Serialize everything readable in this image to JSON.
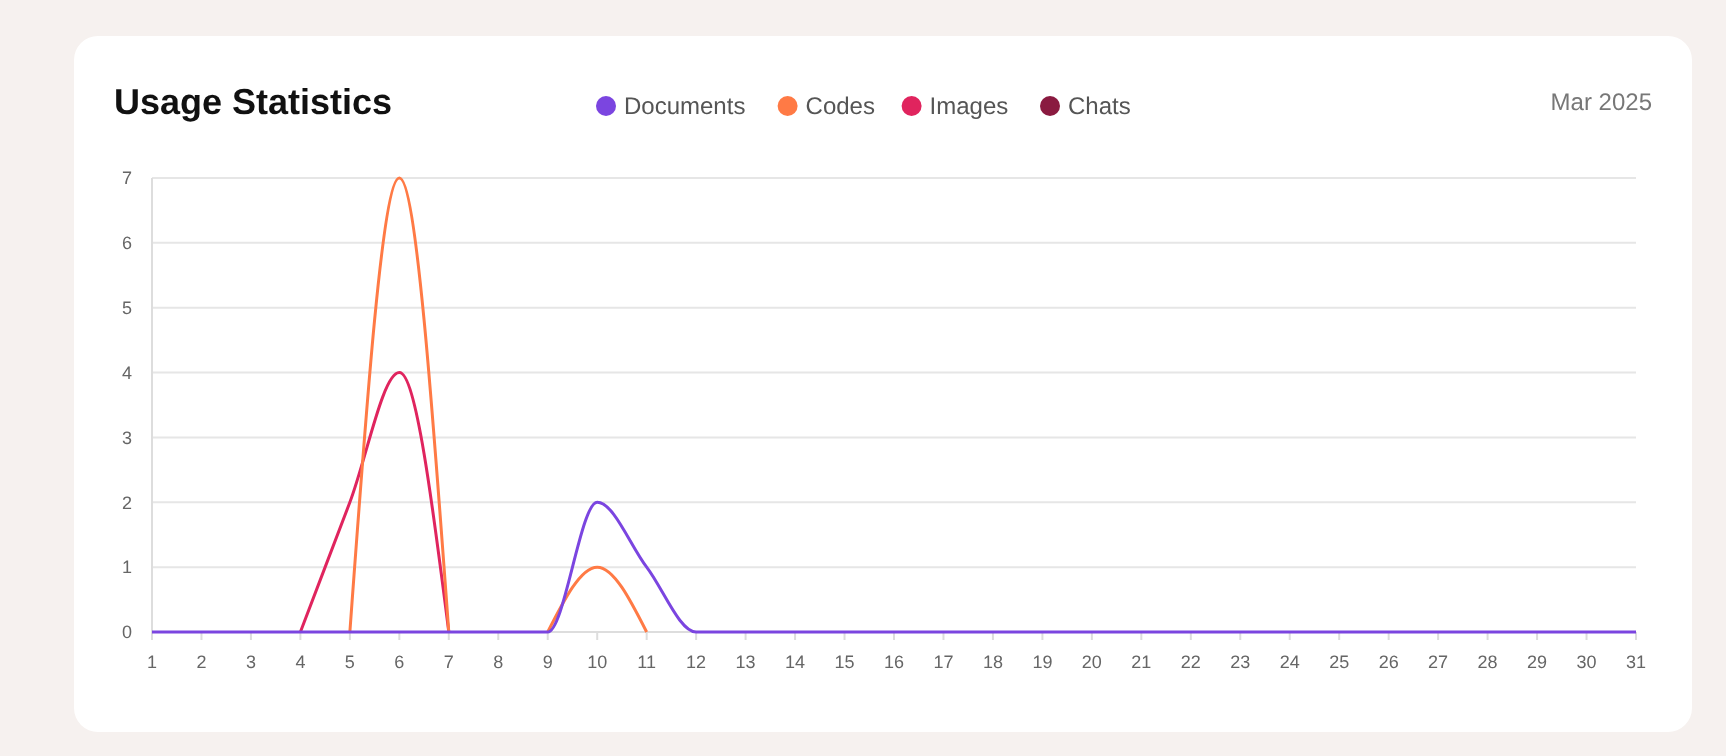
{
  "chart_data": {
    "type": "line",
    "title": "Usage Statistics",
    "subtitle": "Mar 2025",
    "x": [
      1,
      2,
      3,
      4,
      5,
      6,
      7,
      8,
      9,
      10,
      11,
      12,
      13,
      14,
      15,
      16,
      17,
      18,
      19,
      20,
      21,
      22,
      23,
      24,
      25,
      26,
      27,
      28,
      29,
      30,
      31
    ],
    "series": [
      {
        "name": "Documents",
        "color": "#7b45e0",
        "values": [
          0,
          0,
          0,
          0,
          0,
          0,
          0,
          0,
          0,
          2,
          1,
          0,
          0,
          0,
          0,
          0,
          0,
          0,
          0,
          0,
          0,
          0,
          0,
          0,
          0,
          0,
          0,
          0,
          0,
          0,
          0
        ]
      },
      {
        "name": "Codes",
        "color": "#ff7a45",
        "values": [
          null,
          null,
          null,
          null,
          0,
          7,
          0,
          null,
          0,
          1,
          0,
          null,
          null,
          null,
          null,
          null,
          null,
          null,
          null,
          null,
          null,
          null,
          null,
          null,
          null,
          null,
          null,
          null,
          null,
          null,
          null
        ]
      },
      {
        "name": "Images",
        "color": "#e0245e",
        "values": [
          null,
          null,
          null,
          0,
          2,
          4,
          0,
          null,
          null,
          null,
          null,
          null,
          null,
          null,
          null,
          null,
          null,
          null,
          null,
          null,
          null,
          null,
          null,
          null,
          null,
          null,
          null,
          null,
          null,
          null,
          null
        ]
      },
      {
        "name": "Chats",
        "color": "#8a1a40",
        "values": [
          null,
          null,
          null,
          null,
          null,
          null,
          null,
          null,
          null,
          null,
          null,
          null,
          null,
          null,
          null,
          null,
          null,
          null,
          null,
          null,
          null,
          null,
          null,
          null,
          null,
          null,
          null,
          null,
          null,
          null,
          null
        ]
      }
    ],
    "xlim": [
      1,
      31
    ],
    "xticks": [
      1,
      2,
      3,
      4,
      5,
      6,
      7,
      8,
      9,
      10,
      11,
      12,
      13,
      14,
      15,
      16,
      17,
      18,
      19,
      20,
      21,
      22,
      23,
      24,
      25,
      26,
      27,
      28,
      29,
      30,
      31
    ],
    "ylim": [
      0,
      7
    ],
    "yticks": [
      0,
      1,
      2,
      3,
      4,
      5,
      6,
      7
    ],
    "grid": "y",
    "legend": "top",
    "marker": "none",
    "line_style": "solid"
  }
}
